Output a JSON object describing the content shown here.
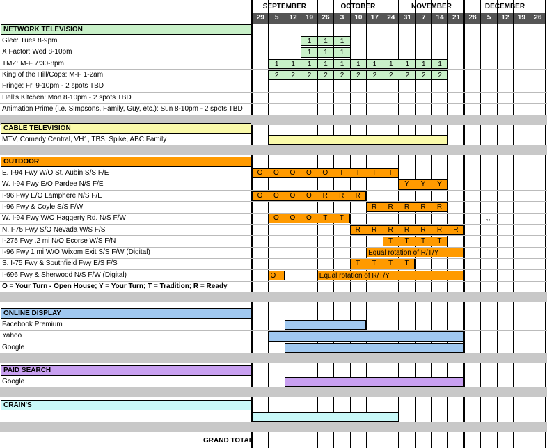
{
  "months": [
    {
      "name": "SEPTEMBER",
      "weeks": [
        "29",
        "5",
        "12",
        "19"
      ]
    },
    {
      "name": "OCTOBER",
      "weeks": [
        "26",
        "3",
        "10",
        "17",
        "24"
      ]
    },
    {
      "name": "NOVEMBER",
      "weeks": [
        "31",
        "7",
        "14",
        "21"
      ]
    },
    {
      "name": "DECEMBER",
      "weeks": [
        "28",
        "5",
        "12",
        "19",
        "26"
      ]
    }
  ],
  "sections": [
    {
      "title": "NETWORK TELEVISION",
      "color": "#c8f0c8",
      "rows": [
        {
          "label": "Glee: Tues 8-9pm",
          "cells": [
            [
              3,
              "1"
            ],
            [
              4,
              "1"
            ],
            [
              5,
              "1"
            ]
          ]
        },
        {
          "label": "X Factor: Wed 8-10pm",
          "cells": [
            [
              3,
              "1"
            ],
            [
              4,
              "1"
            ],
            [
              5,
              "1"
            ]
          ]
        },
        {
          "label": "TMZ:  M-F 7:30-8pm",
          "cells": [
            [
              1,
              "1"
            ],
            [
              2,
              "1"
            ],
            [
              3,
              "1"
            ],
            [
              4,
              "1"
            ],
            [
              5,
              "1"
            ],
            [
              6,
              "1"
            ],
            [
              7,
              "1"
            ],
            [
              8,
              "1"
            ],
            [
              9,
              "1"
            ],
            [
              10,
              "1"
            ],
            [
              11,
              "1"
            ]
          ]
        },
        {
          "label": "King of the Hill/Cops: M-F 1-2am",
          "cells": [
            [
              1,
              "2"
            ],
            [
              2,
              "2"
            ],
            [
              3,
              "2"
            ],
            [
              4,
              "2"
            ],
            [
              5,
              "2"
            ],
            [
              6,
              "2"
            ],
            [
              7,
              "2"
            ],
            [
              8,
              "2"
            ],
            [
              9,
              "2"
            ],
            [
              10,
              "2"
            ],
            [
              11,
              "2"
            ]
          ]
        },
        {
          "label": "Fringe: Fri 9-10pm - 2 spots TBD"
        },
        {
          "label": "Hell's Kitchen: Mon 8-10pm - 2 spots TBD"
        },
        {
          "label": "Animation Prime (i.e. Simpsons, Family, Guy, etc.): Sun 8-10pm  - 2 spots TBD"
        }
      ]
    },
    {
      "title": "CABLE TELEVISION",
      "color": "#fafaaa",
      "rows": [
        {
          "label": "MTV, Comedy Central, VH1, TBS, Spike, ABC Family",
          "bars": [
            {
              "from": 1,
              "to": 12,
              "text": ""
            }
          ]
        }
      ]
    },
    {
      "title": "OUTDOOR",
      "color": "#ff9a00",
      "rows": [
        {
          "label": "E. I-94 Fwy W/O St. Aubin S/S F/E",
          "bars": [
            {
              "from": 0,
              "to": 9,
              "text": ""
            }
          ],
          "marks": [
            "O",
            "O",
            "O",
            "O",
            "O",
            "T",
            "T",
            "T",
            "T"
          ],
          "markStart": 0
        },
        {
          "label": "W. I-94 Fwy E/O Pardee N/S F/E",
          "bars": [
            {
              "from": 9,
              "to": 12,
              "text": ""
            }
          ],
          "marks": [
            "Y",
            "Y",
            "Y"
          ],
          "markStart": 9
        },
        {
          "label": "I-96 Fwy E/O Lamphere N/S F/E",
          "bars": [
            {
              "from": 0,
              "to": 7,
              "text": ""
            }
          ],
          "marks": [
            "O",
            "O",
            "O",
            "O",
            "R",
            "R",
            "R"
          ],
          "markStart": 0
        },
        {
          "label": "I-96 Fwy & Coyle S/S F/W",
          "bars": [
            {
              "from": 7,
              "to": 12,
              "text": ""
            }
          ],
          "marks": [
            "R",
            "R",
            "R",
            "R",
            "R"
          ],
          "markStart": 7
        },
        {
          "label": "W. I-94 Fwy W/O Haggerty Rd. N/S F/W",
          "bars": [
            {
              "from": 1,
              "to": 6,
              "text": ""
            }
          ],
          "marks": [
            "O",
            "O",
            "O",
            "T",
            "T"
          ],
          "markStart": 1
        },
        {
          "label": "N. I-75 Fwy S/O Nevada W/S F/S",
          "bars": [
            {
              "from": 6,
              "to": 13,
              "text": ""
            }
          ],
          "marks": [
            "R",
            "R",
            "R",
            "R",
            "R",
            "R",
            "R"
          ],
          "markStart": 6
        },
        {
          "label": "I-275 Fwy .2 mi N/O Ecorse W/S F/N",
          "bars": [
            {
              "from": 8,
              "to": 12,
              "text": ""
            }
          ],
          "marks": [
            "T",
            "T",
            "T",
            "T"
          ],
          "markStart": 8
        },
        {
          "label": "I-96 Fwy 1 mi W/O Wixom Exit S/S F/W (Digital)",
          "bars": [
            {
              "from": 7,
              "to": 13,
              "text": "Equal rotation of R/T/Y"
            }
          ]
        },
        {
          "label": "S. I-75 Fwy & Southfield Fwy E/S F/S",
          "bars": [
            {
              "from": 6,
              "to": 10,
              "text": ""
            }
          ],
          "marks": [
            "T",
            "T",
            "T",
            "T"
          ],
          "markStart": 6
        },
        {
          "label": "I-696 Fwy & Sherwood N/S F/W (Digital)",
          "bars": [
            {
              "from": 1,
              "to": 2,
              "text": "O"
            },
            {
              "from": 4,
              "to": 13,
              "text": "Equal rotation of R/T/Y"
            }
          ]
        },
        {
          "label": "O = Your Turn - Open House; Y = Your Turn; T = Tradition; R = Ready",
          "bold": true
        }
      ]
    },
    {
      "title": "ONLINE DISPLAY",
      "color": "#a0c8f0",
      "rows": [
        {
          "label": "Facebook Premium",
          "bars": [
            {
              "from": 2,
              "to": 7,
              "text": ""
            }
          ]
        },
        {
          "label": "Yahoo",
          "bars": [
            {
              "from": 1,
              "to": 13,
              "text": ""
            }
          ]
        },
        {
          "label": "Google",
          "bars": [
            {
              "from": 2,
              "to": 13,
              "text": ""
            }
          ]
        }
      ]
    },
    {
      "title": "PAID SEARCH",
      "color": "#c8a0f0",
      "rows": [
        {
          "label": "Google",
          "bars": [
            {
              "from": 2,
              "to": 13,
              "text": ""
            }
          ]
        }
      ]
    },
    {
      "title": "CRAIN'S",
      "color": "#c8f8f8",
      "rows": [
        {
          "label": "",
          "bars": [
            {
              "from": 0,
              "to": 9,
              "text": ""
            }
          ]
        }
      ]
    }
  ],
  "stray_mark": "``",
  "grand_total_label": "GRAND TOTAL"
}
